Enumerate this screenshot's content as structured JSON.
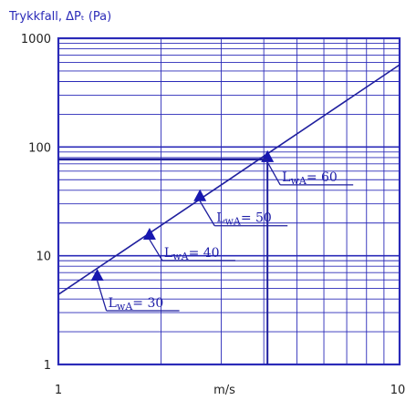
{
  "chart_data": {
    "type": "line",
    "ylabel": "Trykkfall, ΔPₜ (Pa)",
    "xlabel": "m/s",
    "x_scale": "log",
    "y_scale": "log",
    "xlim": [
      1,
      10
    ],
    "ylim": [
      1,
      1000
    ],
    "x_tick_labels": [
      "1",
      "10"
    ],
    "y_tick_labels": [
      "1",
      "10",
      "100",
      "1000"
    ],
    "grid": true,
    "series": [
      {
        "x": [
          1,
          10
        ],
        "y": [
          4.4,
          570
        ]
      }
    ],
    "markers": [
      {
        "x": 1.3,
        "y": 6.5,
        "label": "L_wA = 30",
        "label_main": "L",
        "label_sub": "wA",
        "label_rest": "= 30"
      },
      {
        "x": 1.85,
        "y": 15.5,
        "label": "L_wA = 40",
        "label_main": "L",
        "label_sub": "wA",
        "label_rest": "= 40"
      },
      {
        "x": 2.6,
        "y": 35,
        "label": "L_wA = 50",
        "label_main": "L",
        "label_sub": "wA",
        "label_rest": "= 50"
      },
      {
        "x": 4.1,
        "y": 80,
        "label": "L_wA = 60",
        "label_main": "L",
        "label_sub": "wA",
        "label_rest": "= 60"
      }
    ],
    "colors": {
      "grid": "#2a2ab8",
      "line": "#1f1f9e",
      "marker": "#1717b0",
      "title": "#2b2bb8"
    }
  }
}
